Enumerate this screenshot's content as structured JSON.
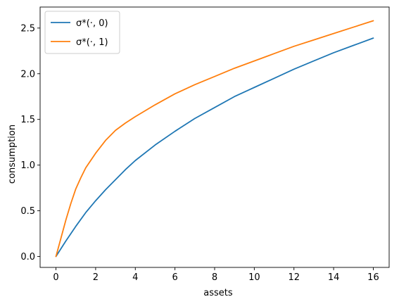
{
  "chart_data": {
    "type": "line",
    "title": "",
    "xlabel": "assets",
    "ylabel": "consumption",
    "xlim": [
      -0.8,
      16.8
    ],
    "ylim": [
      -0.12,
      2.73
    ],
    "xticks": [
      0,
      2,
      4,
      6,
      8,
      10,
      12,
      14,
      16
    ],
    "xtick_labels": [
      "0",
      "2",
      "4",
      "6",
      "8",
      "10",
      "12",
      "14",
      "16"
    ],
    "yticks": [
      0.0,
      0.5,
      1.0,
      1.5,
      2.0,
      2.5
    ],
    "ytick_labels": [
      "0.0",
      "0.5",
      "1.0",
      "1.5",
      "2.0",
      "2.5"
    ],
    "grid": false,
    "legend_position": "top-left",
    "series": [
      {
        "name": "σ*(·, 0)",
        "color": "#1f77b4",
        "x": [
          0,
          0.5,
          1,
          1.5,
          2,
          2.5,
          3,
          3.5,
          4,
          5,
          6,
          7,
          8,
          9,
          10,
          11,
          12,
          13,
          14,
          15,
          16
        ],
        "y": [
          0.0,
          0.17,
          0.33,
          0.48,
          0.61,
          0.73,
          0.84,
          0.95,
          1.05,
          1.22,
          1.37,
          1.51,
          1.63,
          1.75,
          1.85,
          1.95,
          2.05,
          2.14,
          2.23,
          2.31,
          2.39
        ]
      },
      {
        "name": "σ*(·, 1)",
        "color": "#ff7f0e",
        "x": [
          0,
          0.25,
          0.5,
          0.75,
          1,
          1.25,
          1.5,
          2,
          2.5,
          3,
          3.5,
          4,
          5,
          6,
          7,
          8,
          9,
          10,
          11,
          12,
          13,
          14,
          15,
          16
        ],
        "y": [
          0.0,
          0.2,
          0.4,
          0.58,
          0.74,
          0.86,
          0.97,
          1.13,
          1.27,
          1.38,
          1.46,
          1.53,
          1.66,
          1.78,
          1.88,
          1.97,
          2.06,
          2.14,
          2.22,
          2.3,
          2.37,
          2.44,
          2.51,
          2.58
        ]
      }
    ]
  }
}
